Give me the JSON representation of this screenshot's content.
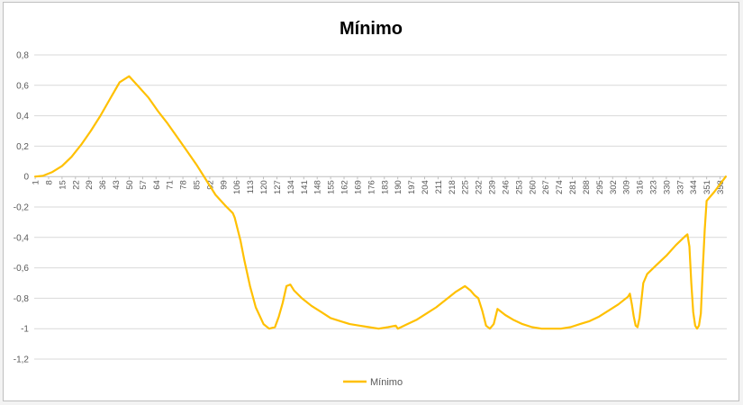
{
  "chart_data": {
    "type": "line",
    "title": "Mínimo",
    "xlabel": "",
    "ylabel": "",
    "ylim": [
      -1.2,
      0.8
    ],
    "yticks": [
      "0,8",
      "0,6",
      "0,4",
      "0,2",
      "0",
      "-0,2",
      "-0,4",
      "-0,6",
      "-0,8",
      "-1",
      "-1,2"
    ],
    "ytick_values": [
      0.8,
      0.6,
      0.4,
      0.2,
      0,
      -0.2,
      -0.4,
      -0.6,
      -0.8,
      -1,
      -1.2
    ],
    "x_range": [
      1,
      361
    ],
    "xticks": [
      "1",
      "8",
      "15",
      "22",
      "29",
      "36",
      "43",
      "50",
      "57",
      "64",
      "71",
      "78",
      "85",
      "92",
      "99",
      "106",
      "113",
      "120",
      "127",
      "134",
      "141",
      "148",
      "155",
      "162",
      "169",
      "176",
      "183",
      "190",
      "197",
      "204",
      "211",
      "218",
      "225",
      "232",
      "239",
      "246",
      "253",
      "260",
      "267",
      "274",
      "281",
      "288",
      "295",
      "302",
      "309",
      "316",
      "323",
      "330",
      "337",
      "344",
      "351",
      "358"
    ],
    "grid": true,
    "legend_position": "bottom",
    "color": "#FFC000",
    "series": [
      {
        "name": "Mínimo",
        "x": [
          1,
          5,
          10,
          15,
          20,
          25,
          30,
          35,
          40,
          45,
          50,
          55,
          60,
          65,
          70,
          75,
          80,
          85,
          90,
          95,
          100,
          104,
          105,
          108,
          110,
          113,
          116,
          120,
          123,
          126,
          128,
          130,
          132,
          134,
          136,
          140,
          145,
          150,
          155,
          160,
          165,
          170,
          175,
          180,
          185,
          189,
          190,
          195,
          200,
          205,
          210,
          215,
          220,
          225,
          228,
          230,
          232,
          234,
          236,
          238,
          240,
          242,
          244,
          246,
          250,
          255,
          260,
          265,
          270,
          275,
          280,
          285,
          290,
          295,
          300,
          305,
          310,
          311,
          312,
          313,
          314,
          315,
          316,
          318,
          320,
          325,
          330,
          335,
          340,
          341,
          342,
          343,
          344,
          345,
          346,
          347,
          348,
          349,
          350,
          351,
          355,
          361
        ],
        "y": [
          0,
          0.005,
          0.03,
          0.07,
          0.13,
          0.21,
          0.3,
          0.4,
          0.51,
          0.62,
          0.66,
          0.59,
          0.52,
          0.43,
          0.35,
          0.26,
          0.17,
          0.08,
          -0.02,
          -0.12,
          -0.19,
          -0.24,
          -0.27,
          -0.42,
          -0.55,
          -0.72,
          -0.86,
          -0.97,
          -1.0,
          -0.99,
          -0.92,
          -0.83,
          -0.72,
          -0.71,
          -0.75,
          -0.8,
          -0.85,
          -0.89,
          -0.93,
          -0.95,
          -0.97,
          -0.98,
          -0.99,
          -1.0,
          -0.99,
          -0.98,
          -1.0,
          -0.97,
          -0.94,
          -0.9,
          -0.86,
          -0.81,
          -0.76,
          -0.72,
          -0.75,
          -0.78,
          -0.8,
          -0.88,
          -0.98,
          -1.0,
          -0.97,
          -0.87,
          -0.89,
          -0.91,
          -0.94,
          -0.97,
          -0.99,
          -1.0,
          -1.0,
          -1.0,
          -0.99,
          -0.97,
          -0.95,
          -0.92,
          -0.88,
          -0.84,
          -0.79,
          -0.77,
          -0.84,
          -0.92,
          -0.98,
          -0.99,
          -0.93,
          -0.7,
          -0.64,
          -0.58,
          -0.52,
          -0.45,
          -0.39,
          -0.38,
          -0.46,
          -0.7,
          -0.89,
          -0.98,
          -1.0,
          -0.98,
          -0.9,
          -0.6,
          -0.35,
          -0.16,
          -0.1,
          0
        ]
      }
    ]
  }
}
